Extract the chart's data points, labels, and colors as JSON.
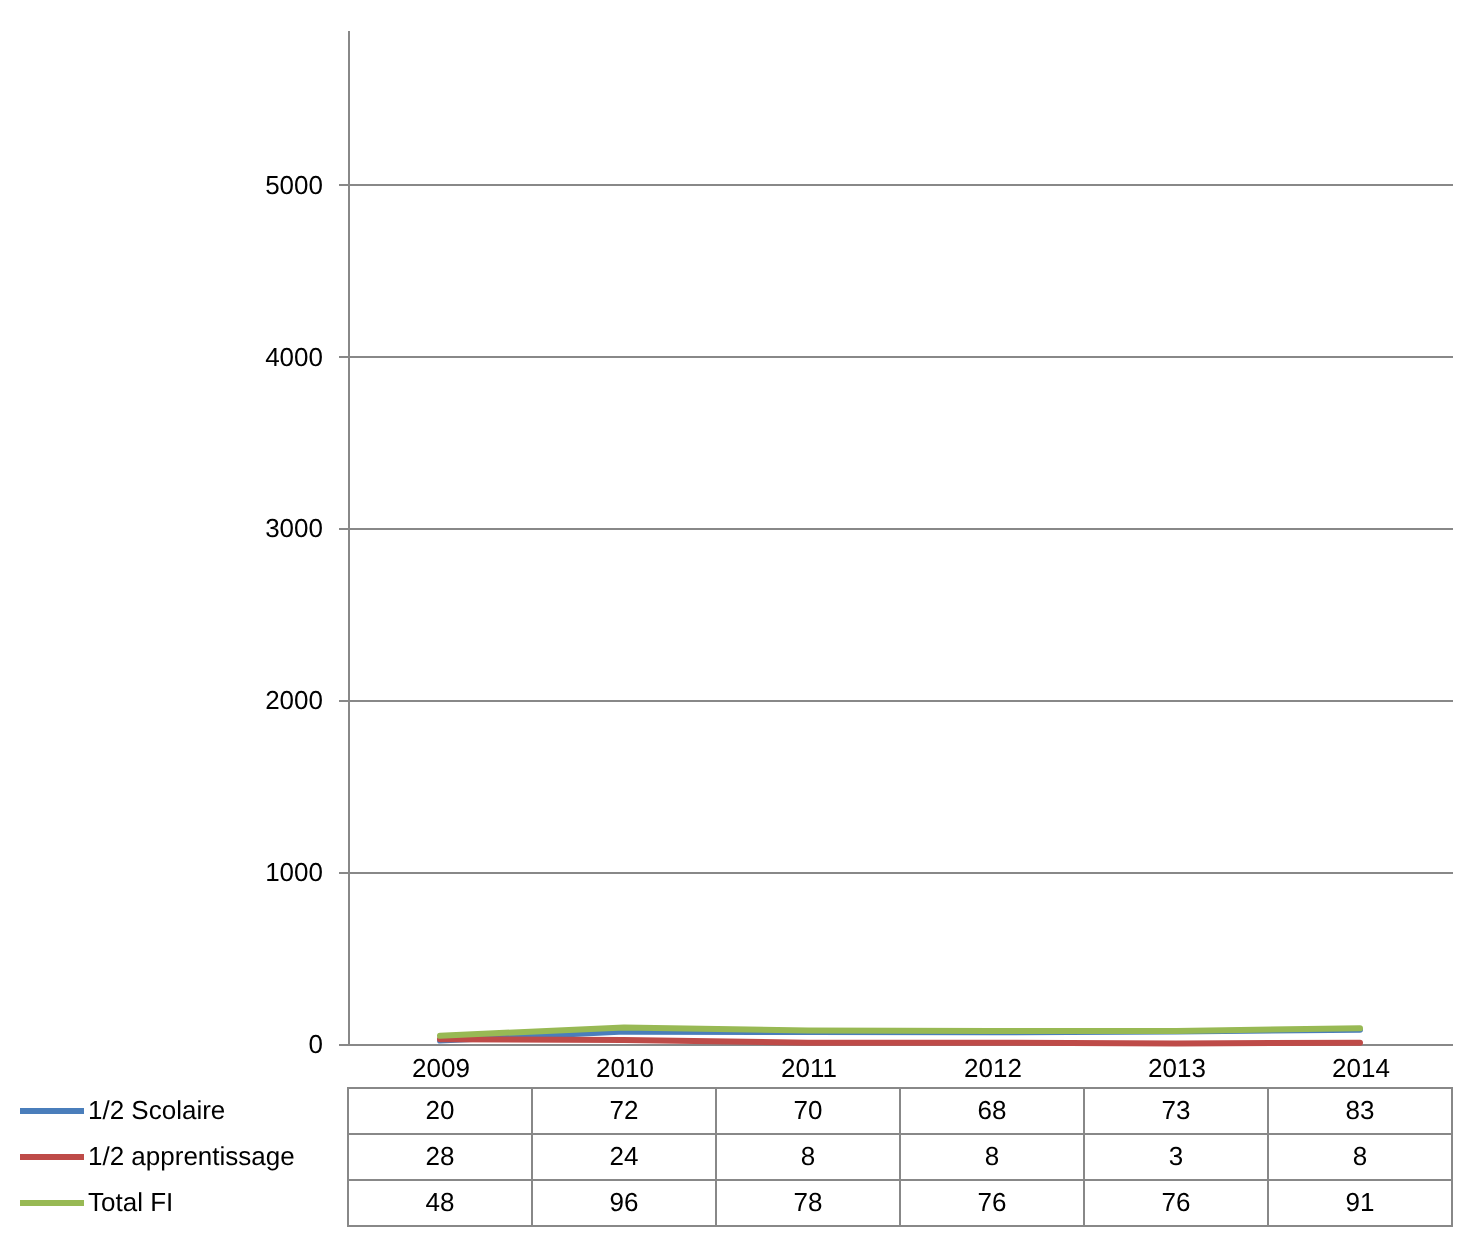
{
  "chart_data": {
    "type": "line",
    "categories": [
      "2009",
      "2010",
      "2011",
      "2012",
      "2013",
      "2014"
    ],
    "series": [
      {
        "name": "1/2 Scolaire",
        "color": "#4a7ebb",
        "values": [
          20,
          72,
          70,
          68,
          73,
          83
        ]
      },
      {
        "name": "1/2 apprentissage",
        "color": "#be4b48",
        "values": [
          28,
          24,
          8,
          8,
          3,
          8
        ]
      },
      {
        "name": "Total FI",
        "color": "#98b954",
        "values": [
          48,
          96,
          78,
          76,
          76,
          91
        ]
      }
    ],
    "ylim": [
      0,
      5900
    ],
    "yticks": [
      0,
      {
        "value": 1000,
        "label": "1000"
      },
      {
        "value": 2000,
        "label": "2000"
      },
      {
        "value": 3000,
        "label": "3000"
      },
      {
        "value": 4000,
        "label": "4000"
      },
      {
        "value": 5000,
        "label": "5000"
      }
    ],
    "grid": "y",
    "legend": "bottom",
    "data_labels": true,
    "marker": "none",
    "line_style": "solid"
  }
}
